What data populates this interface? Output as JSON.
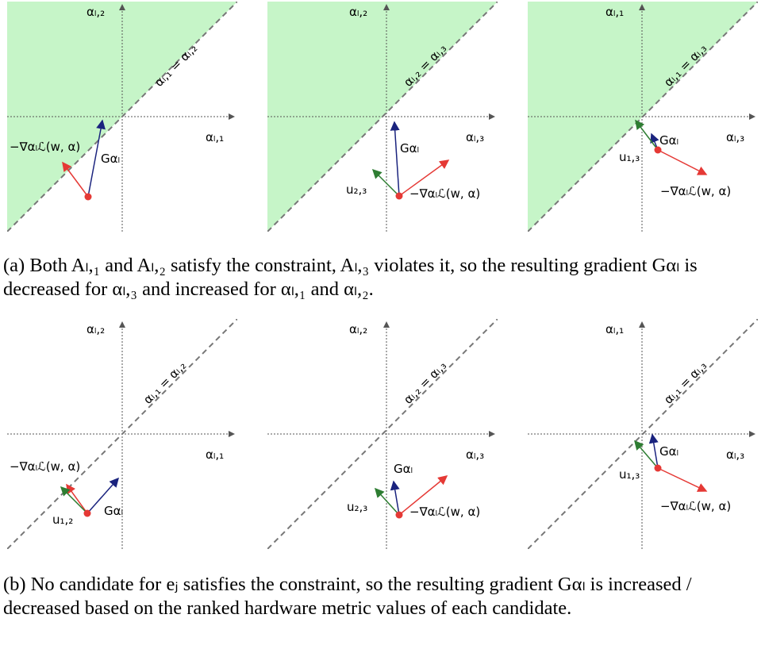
{
  "colors": {
    "feasible_fill": "#c6f5c8",
    "axis": "#555555",
    "diag": "#777777",
    "gradient": "#1a237e",
    "neg_loss": "#e53935",
    "u_vec": "#2e7d32",
    "point": "#e53935"
  },
  "labels": {
    "neg_grad": "−∇αₗℒ(w, α)",
    "G": "Gαₗ"
  },
  "rows": [
    {
      "name": "a",
      "caption": "(a) Both Aₗ,₁ and Aₗ,₂ satisfy the constraint, Aₗ,₃ violates it, so the resulting gradient Gαₗ is decreased for αₗ,₃ and increased for αₗ,₁ and αₗ,₂.",
      "panels": [
        {
          "ylabel": "αₗ,₂",
          "xlabel": "αₗ,₁",
          "diag_label": "αₗ,₁ = αₗ,₂",
          "u_label": ""
        },
        {
          "ylabel": "αₗ,₂",
          "xlabel": "αₗ,₃",
          "diag_label": "αₗ,₂ = αₗ,₃",
          "u_label": "u₂,₃"
        },
        {
          "ylabel": "αₗ,₁",
          "xlabel": "αₗ,₃",
          "diag_label": "αₗ,₁ = αₗ,₃",
          "u_label": "u₁,₃"
        }
      ]
    },
    {
      "name": "b",
      "caption": "(b) No candidate for eⱼ satisfies the constraint, so the resulting gradient Gαₗ is increased / decreased based on the ranked hardware metric values of each candidate.",
      "panels": [
        {
          "ylabel": "αₗ,₂",
          "xlabel": "αₗ,₁",
          "diag_label": "αₗ,₁ = αₗ,₂",
          "u_label": "u₁,₂"
        },
        {
          "ylabel": "αₗ,₂",
          "xlabel": "αₗ,₃",
          "diag_label": "αₗ,₂ = αₗ,₃",
          "u_label": "u₂,₃"
        },
        {
          "ylabel": "αₗ,₁",
          "xlabel": "αₗ,₃",
          "diag_label": "αₗ,₁ = αₗ,₃",
          "u_label": "u₁,₃"
        }
      ]
    }
  ]
}
